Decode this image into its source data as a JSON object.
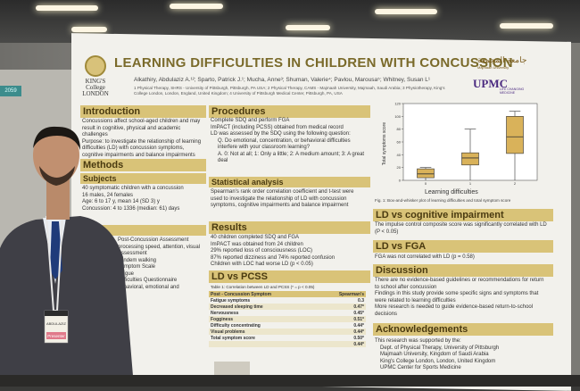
{
  "poster": {
    "title": "LEARNING DIFFICULTIES IN CHILDREN WITH CONCUSSION",
    "authors": "Alkathiry, Abdulaziz A.¹²; Sparto, Patrick J.¹; Mucha, Anne³; Shuman, Valerie⁴; Pavlou, Marousa⁵; Whitney, Susan L¹",
    "affiliations": "1 Physical Therapy, SHRS - University of Pittsburgh, Pittsburgh, PA USA; 2 Physical Therapy, CAMS - Majmaah University, Majmaah, Saudi Arabia; 3 Physiotherapy, King's College London, London, England, United Kingdom; 4 University of Pittsburgh Medical Center, Pittsburgh, PA, USA",
    "logos": {
      "kings": "KING'S College LONDON",
      "arabic": "جامعة المجمعة",
      "arabic_sub": "Majmaah University",
      "upmc": "UPMC",
      "upmc_sub": "LIFE CHANGING MEDICINE"
    },
    "intro": {
      "heading": "Introduction",
      "bullets": [
        "Concussions affect school-aged children and may result in cognitive, physical and academic challenges",
        "Purpose: to investigate the relationship of learning difficulties (LD) with concussion symptoms, cognitive impairments and balance impairments"
      ]
    },
    "methods": {
      "heading": "Methods",
      "subjects_heading": "Subjects",
      "subjects": [
        "40 symptomatic children with a concussion",
        "16 males, 24 females",
        "Age: 6 to 17 y, mean 14 (SD 3) y",
        "Concussion: 4 to 1336 (median: 61) days"
      ],
      "tools_heading": "tools",
      "tools": [
        "Post-Concussion Assessment",
        "processing speed, attention, visual",
        "Assessment",
        "Tandem walking",
        "Symptom Scale",
        "fatigue",
        "Difficulties Questionnaire",
        "behavioral, emotional and"
      ]
    },
    "procedures": {
      "heading": "Procedures",
      "bullets": [
        "Complete SDQ and perform FGA",
        "ImPACT (including PCSS) obtained from medical record",
        "LD was assessed by the SDQ using the following question:",
        "Q. Do emotional, concentration, or behavioral difficulties interfere with your classroom learning?",
        "A. 0: Not at all; 1: Only a little; 2: A medium amount; 3: A great deal"
      ]
    },
    "stats": {
      "heading": "Statistical analysis",
      "bullets": [
        "Spearman's rank order correlation coefficient and t-test were used to investigate the relationship of LD with concussion symptoms, cognitive impairments and balance impairment"
      ]
    },
    "results": {
      "heading": "Results",
      "bullets": [
        "40 children completed SDQ and FGA",
        "ImPACT was obtained from 24 children",
        "29% reported loss of consciousness (LOC)",
        "87% reported dizziness and 74% reported confusion",
        "Children with LOC had worse LD (p < 0.05)"
      ]
    },
    "ld_pcss": {
      "heading": "LD vs PCSS",
      "caption": "Table 1: Correlation between LD and PCSS (* = p < 0.05)",
      "col1": "Post - Concussion Symptom",
      "col2": "Spearman's",
      "rows": [
        {
          "name": "Fatigue symptoms",
          "val": "0.3"
        },
        {
          "name": "Decreased sleeping time",
          "val": "0.47*"
        },
        {
          "name": "Nervousness",
          "val": "0.45*"
        },
        {
          "name": "Fogginess",
          "val": "0.51*"
        },
        {
          "name": "Difficulty concentrating",
          "val": "0.44*"
        },
        {
          "name": "Visual problems",
          "val": "0.44*"
        },
        {
          "name": "Total symptom score",
          "val": "0.50*"
        },
        {
          "name": "",
          "val": "0.44*"
        }
      ]
    },
    "chart": {
      "ylabel": "Total symptoms score",
      "xlabel": "Learning difficulties",
      "caption": "Fig. 1: Box-and-whisker plot of learning difficulties and total symptom score"
    },
    "ld_cog": {
      "heading": "LD vs cognitive impairment",
      "bullets": [
        "The impulse control composite score was significantly correlated with LD (P < 0.05)"
      ]
    },
    "ld_fga": {
      "heading": "LD vs FGA",
      "bullets": [
        "FGA was not correlated with LD (p = 0.58)"
      ]
    },
    "discussion": {
      "heading": "Discussion",
      "bullets": [
        "There are no evidence-based guidelines or recommendations for return to school after concussion",
        "Findings in this study provide some specific signs and symptoms that were related to learning difficulties",
        "More research is needed to guide evidence-based return-to-school decisions"
      ]
    },
    "ack": {
      "heading": "Acknowledgements",
      "lead": "This research was supported by the:",
      "bullets": [
        "Dept. of Physical Therapy, University of Pittsburgh",
        "Majmaah University, Kingdom of Saudi Arabia",
        "King's College London, London, United Kingdom",
        "UPMC Center for Sports Medicine"
      ]
    }
  },
  "badge": {
    "name": "ABDULAZIZ",
    "role": "Presenter"
  },
  "tag_left": "2059",
  "chart_data": {
    "type": "box",
    "categories": [
      "0",
      "1",
      "2"
    ],
    "boxes": [
      {
        "category": "0",
        "min": 0,
        "q1": 4,
        "median": 10,
        "q3": 18,
        "max": 20
      },
      {
        "category": "1",
        "min": 0,
        "q1": 24,
        "median": 35,
        "q3": 43,
        "max": 80
      },
      {
        "category": "2",
        "min": 0,
        "q1": 42,
        "median": 68,
        "q3": 100,
        "max": 108
      }
    ],
    "xlabel": "Learning difficulties",
    "ylabel": "Total symptoms score",
    "ylim": [
      0,
      120
    ],
    "yticks": [
      0,
      20,
      40,
      60,
      80,
      100,
      120
    ]
  }
}
